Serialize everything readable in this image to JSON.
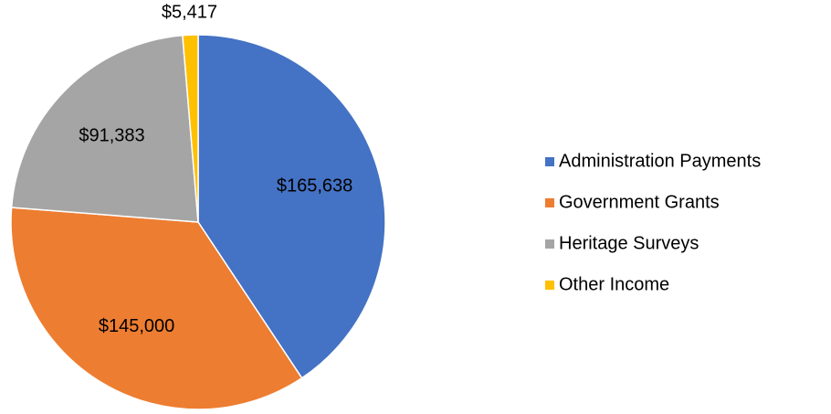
{
  "chart_data": {
    "type": "pie",
    "categories": [
      "Administration Payments",
      "Government Grants",
      "Heritage Surveys",
      "Other Income"
    ],
    "values": [
      165638,
      145000,
      91383,
      5417
    ],
    "value_labels": [
      "$165,638",
      "$145,000",
      "$91,383",
      "$5,417"
    ],
    "colors": [
      "#4472c4",
      "#ed7d31",
      "#a5a5a5",
      "#ffc000"
    ],
    "legend": "right"
  }
}
